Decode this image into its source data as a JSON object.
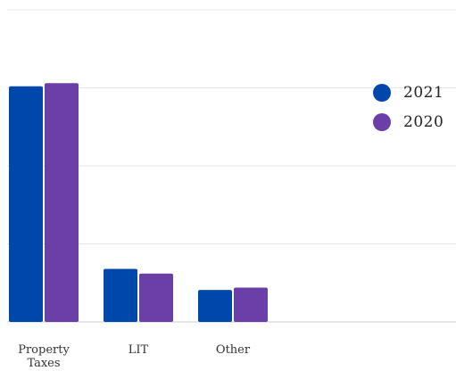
{
  "chart_data": {
    "type": "bar",
    "title": "",
    "xlabel": "",
    "ylabel": "",
    "categories": [
      "Property Taxes",
      "LIT",
      "Other"
    ],
    "series": [
      {
        "name": "2021",
        "color": "#0047AB",
        "values": [
          30.2,
          6.8,
          4.1
        ]
      },
      {
        "name": "2020",
        "color": "#6A3FA8",
        "values": [
          30.6,
          6.2,
          4.4
        ]
      }
    ],
    "ylim": [
      0,
      40
    ],
    "grid": true,
    "legend_position": "right"
  }
}
